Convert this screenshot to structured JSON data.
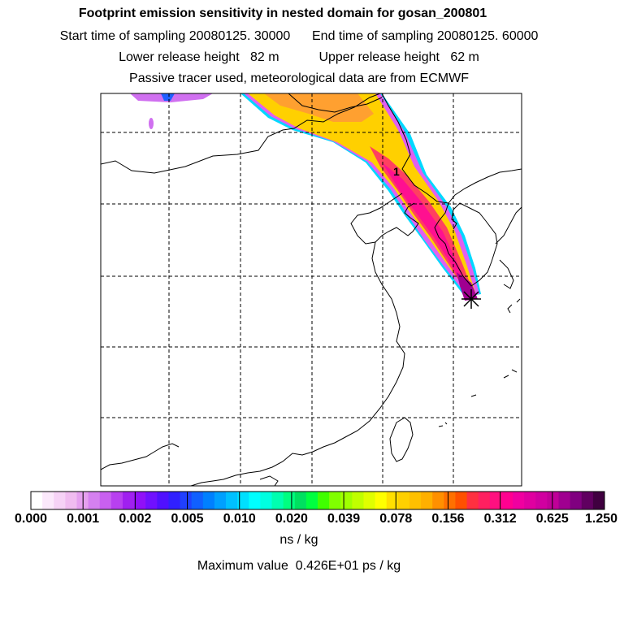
{
  "header": {
    "title": "Footprint emission sensitivity in nested domain for gosan_200801",
    "line2": "Start time of sampling 20080125. 30000      End time of sampling 20080125. 60000",
    "line3": "Lower release height   82 m           Upper release height   62 m",
    "line4": "Passive tracer used, meteorological data are from ECMWF"
  },
  "map": {
    "contour_label": "1",
    "release_marker": "release-site-marker"
  },
  "colorbar": {
    "labels": [
      "0.000",
      "0.001",
      "0.002",
      "0.005",
      "0.010",
      "0.020",
      "0.039",
      "0.078",
      "0.156",
      "0.312",
      "0.625",
      "1.250"
    ],
    "colors": [
      "#ffffff",
      "#fbe8fb",
      "#f6d2f6",
      "#f0bcf0",
      "#e5a0ef",
      "#d580f0",
      "#c860f0",
      "#b840f0",
      "#a020f0",
      "#9010f8",
      "#7010ff",
      "#5010ff",
      "#3020ff",
      "#2040ff",
      "#1060ff",
      "#0080ff",
      "#00a0ff",
      "#00c0ff",
      "#00e0ff",
      "#00ffff",
      "#00ffe0",
      "#00ffb0",
      "#00ff80",
      "#00e060",
      "#00ff40",
      "#40ff00",
      "#80ff00",
      "#a0ff00",
      "#c0ff00",
      "#e0ff00",
      "#ffff00",
      "#ffe000",
      "#ffd000",
      "#ffc000",
      "#ffb000",
      "#ff9000",
      "#ff7000",
      "#ff5000",
      "#ff3040",
      "#ff2060",
      "#ff1080",
      "#ff0090",
      "#f000a0",
      "#e000a0",
      "#d000a0",
      "#c00098",
      "#a00090",
      "#800080",
      "#600060",
      "#400040"
    ],
    "units": "ns / kg",
    "max_value": "Maximum value  0.426E+01 ps / kg"
  }
}
